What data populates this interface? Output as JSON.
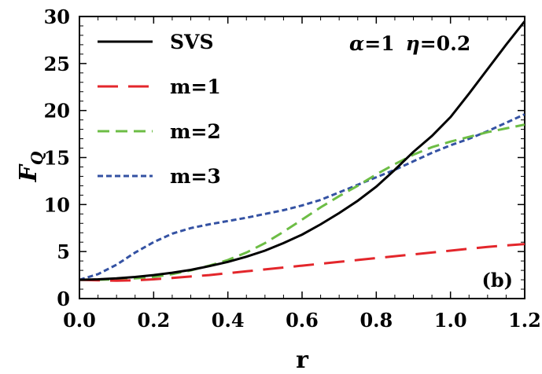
{
  "chart_data": {
    "type": "line",
    "xlabel": "r",
    "ylabel_main": "F",
    "ylabel_sub": "Q",
    "xlim": [
      0.0,
      1.2
    ],
    "ylim": [
      0,
      30
    ],
    "x_ticks": [
      0.0,
      0.2,
      0.4,
      0.6,
      0.8,
      1.0,
      1.2
    ],
    "x_tick_labels": [
      "0.0",
      "0.2",
      "0.4",
      "0.6",
      "0.8",
      "1.0",
      "1.2"
    ],
    "y_ticks": [
      0,
      5,
      10,
      15,
      20,
      25,
      30
    ],
    "y_tick_labels": [
      "0",
      "5",
      "10",
      "15",
      "20",
      "25",
      "30"
    ],
    "annotation": {
      "alpha_symbol": "α",
      "alpha_value": "=1",
      "eta_symbol": "η",
      "eta_value": "=0.2"
    },
    "panel_label": "(b)",
    "legend_position": "top-left",
    "grid": false,
    "series": [
      {
        "name": "SVS",
        "color": "#000000",
        "dash": "solid",
        "x": [
          0.0,
          0.05,
          0.1,
          0.15,
          0.2,
          0.25,
          0.3,
          0.35,
          0.4,
          0.45,
          0.5,
          0.55,
          0.6,
          0.65,
          0.7,
          0.75,
          0.8,
          0.85,
          0.9,
          0.95,
          1.0,
          1.05,
          1.1,
          1.15,
          1.2
        ],
        "y": [
          2.0,
          2.05,
          2.15,
          2.3,
          2.5,
          2.75,
          3.05,
          3.45,
          3.9,
          4.45,
          5.1,
          5.9,
          6.8,
          7.9,
          9.1,
          10.4,
          11.9,
          13.7,
          15.6,
          17.3,
          19.3,
          21.8,
          24.4,
          27.0,
          29.5
        ]
      },
      {
        "name": "m=1",
        "color": "#e3262b",
        "dash": "long",
        "x": [
          0.0,
          0.05,
          0.1,
          0.15,
          0.2,
          0.25,
          0.3,
          0.35,
          0.4,
          0.45,
          0.5,
          0.55,
          0.6,
          0.65,
          0.7,
          0.75,
          0.8,
          0.85,
          0.9,
          0.95,
          1.0,
          1.05,
          1.1,
          1.15,
          1.2
        ],
        "y": [
          2.0,
          1.95,
          1.9,
          1.95,
          2.05,
          2.2,
          2.35,
          2.5,
          2.7,
          2.9,
          3.1,
          3.3,
          3.5,
          3.7,
          3.9,
          4.1,
          4.3,
          4.5,
          4.7,
          4.9,
          5.1,
          5.3,
          5.5,
          5.65,
          5.8
        ]
      },
      {
        "name": "m=2",
        "color": "#6dbd45",
        "dash": "medium",
        "x": [
          0.0,
          0.05,
          0.1,
          0.15,
          0.2,
          0.25,
          0.3,
          0.35,
          0.4,
          0.45,
          0.5,
          0.55,
          0.6,
          0.65,
          0.7,
          0.75,
          0.8,
          0.85,
          0.9,
          0.95,
          1.0,
          1.05,
          1.1,
          1.15,
          1.2
        ],
        "y": [
          2.0,
          2.0,
          2.05,
          2.15,
          2.3,
          2.6,
          3.0,
          3.5,
          4.1,
          4.9,
          5.9,
          7.1,
          8.4,
          9.7,
          10.9,
          12.0,
          13.2,
          14.3,
          15.3,
          16.1,
          16.7,
          17.2,
          17.7,
          18.1,
          18.5
        ]
      },
      {
        "name": "m=3",
        "color": "#3452a3",
        "dash": "short",
        "x": [
          0.0,
          0.05,
          0.1,
          0.15,
          0.2,
          0.25,
          0.3,
          0.35,
          0.4,
          0.45,
          0.5,
          0.55,
          0.6,
          0.65,
          0.7,
          0.75,
          0.8,
          0.85,
          0.9,
          0.95,
          1.0,
          1.05,
          1.1,
          1.15,
          1.2
        ],
        "y": [
          2.0,
          2.6,
          3.6,
          4.9,
          6.0,
          6.9,
          7.5,
          7.9,
          8.25,
          8.6,
          9.0,
          9.4,
          9.9,
          10.5,
          11.3,
          12.1,
          12.9,
          13.7,
          14.6,
          15.5,
          16.3,
          17.0,
          17.8,
          18.7,
          19.6
        ]
      }
    ]
  }
}
